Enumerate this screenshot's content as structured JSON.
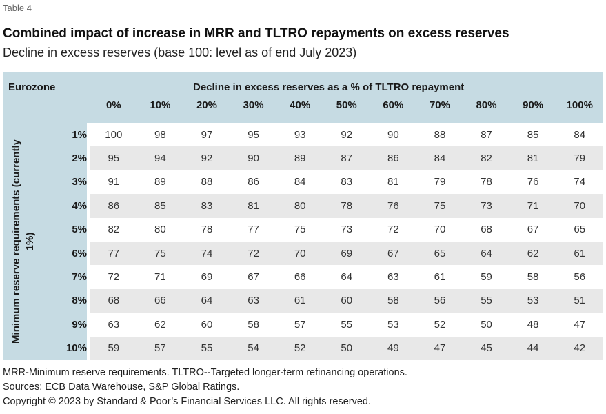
{
  "label": "Table 4",
  "title": "Combined impact of increase in MRR and TLTRO repayments on excess reserves",
  "subtitle": "Decline in excess reserves (base 100: level as of end July 2023)",
  "table": {
    "corner": "Eurozone",
    "column_group_header": "Decline in excess reserves as a % of TLTRO repayment",
    "row_group_header": "Minimum reserve requirements (currently 1%)",
    "columns": [
      "0%",
      "10%",
      "20%",
      "30%",
      "40%",
      "50%",
      "60%",
      "70%",
      "80%",
      "90%",
      "100%"
    ],
    "rows": [
      {
        "label": "1%",
        "values": [
          "100",
          "98",
          "97",
          "95",
          "93",
          "92",
          "90",
          "88",
          "87",
          "85",
          "84"
        ]
      },
      {
        "label": "2%",
        "values": [
          "95",
          "94",
          "92",
          "90",
          "89",
          "87",
          "86",
          "84",
          "82",
          "81",
          "79"
        ]
      },
      {
        "label": "3%",
        "values": [
          "91",
          "89",
          "88",
          "86",
          "84",
          "83",
          "81",
          "79",
          "78",
          "76",
          "74"
        ]
      },
      {
        "label": "4%",
        "values": [
          "86",
          "85",
          "83",
          "81",
          "80",
          "78",
          "76",
          "75",
          "73",
          "71",
          "70"
        ]
      },
      {
        "label": "5%",
        "values": [
          "82",
          "80",
          "78",
          "77",
          "75",
          "73",
          "72",
          "70",
          "68",
          "67",
          "65"
        ]
      },
      {
        "label": "6%",
        "values": [
          "77",
          "75",
          "74",
          "72",
          "70",
          "69",
          "67",
          "65",
          "64",
          "62",
          "61"
        ]
      },
      {
        "label": "7%",
        "values": [
          "72",
          "71",
          "69",
          "67",
          "66",
          "64",
          "63",
          "61",
          "59",
          "58",
          "56"
        ]
      },
      {
        "label": "8%",
        "values": [
          "68",
          "66",
          "64",
          "63",
          "61",
          "60",
          "58",
          "56",
          "55",
          "53",
          "51"
        ]
      },
      {
        "label": "9%",
        "values": [
          "63",
          "62",
          "60",
          "58",
          "57",
          "55",
          "53",
          "52",
          "50",
          "48",
          "47"
        ]
      },
      {
        "label": "10%",
        "values": [
          "59",
          "57",
          "55",
          "54",
          "52",
          "50",
          "49",
          "47",
          "45",
          "44",
          "42"
        ]
      }
    ]
  },
  "footnotes": {
    "definitions": "MRR-Minimum reserve requirements. TLTRO--Targeted longer-term refinancing operations.",
    "sources": "Sources: ECB Data Warehouse, S&P Global Ratings.",
    "copyright": "Copyright © 2023 by Standard & Poor’s Financial Services LLC. All rights reserved."
  }
}
